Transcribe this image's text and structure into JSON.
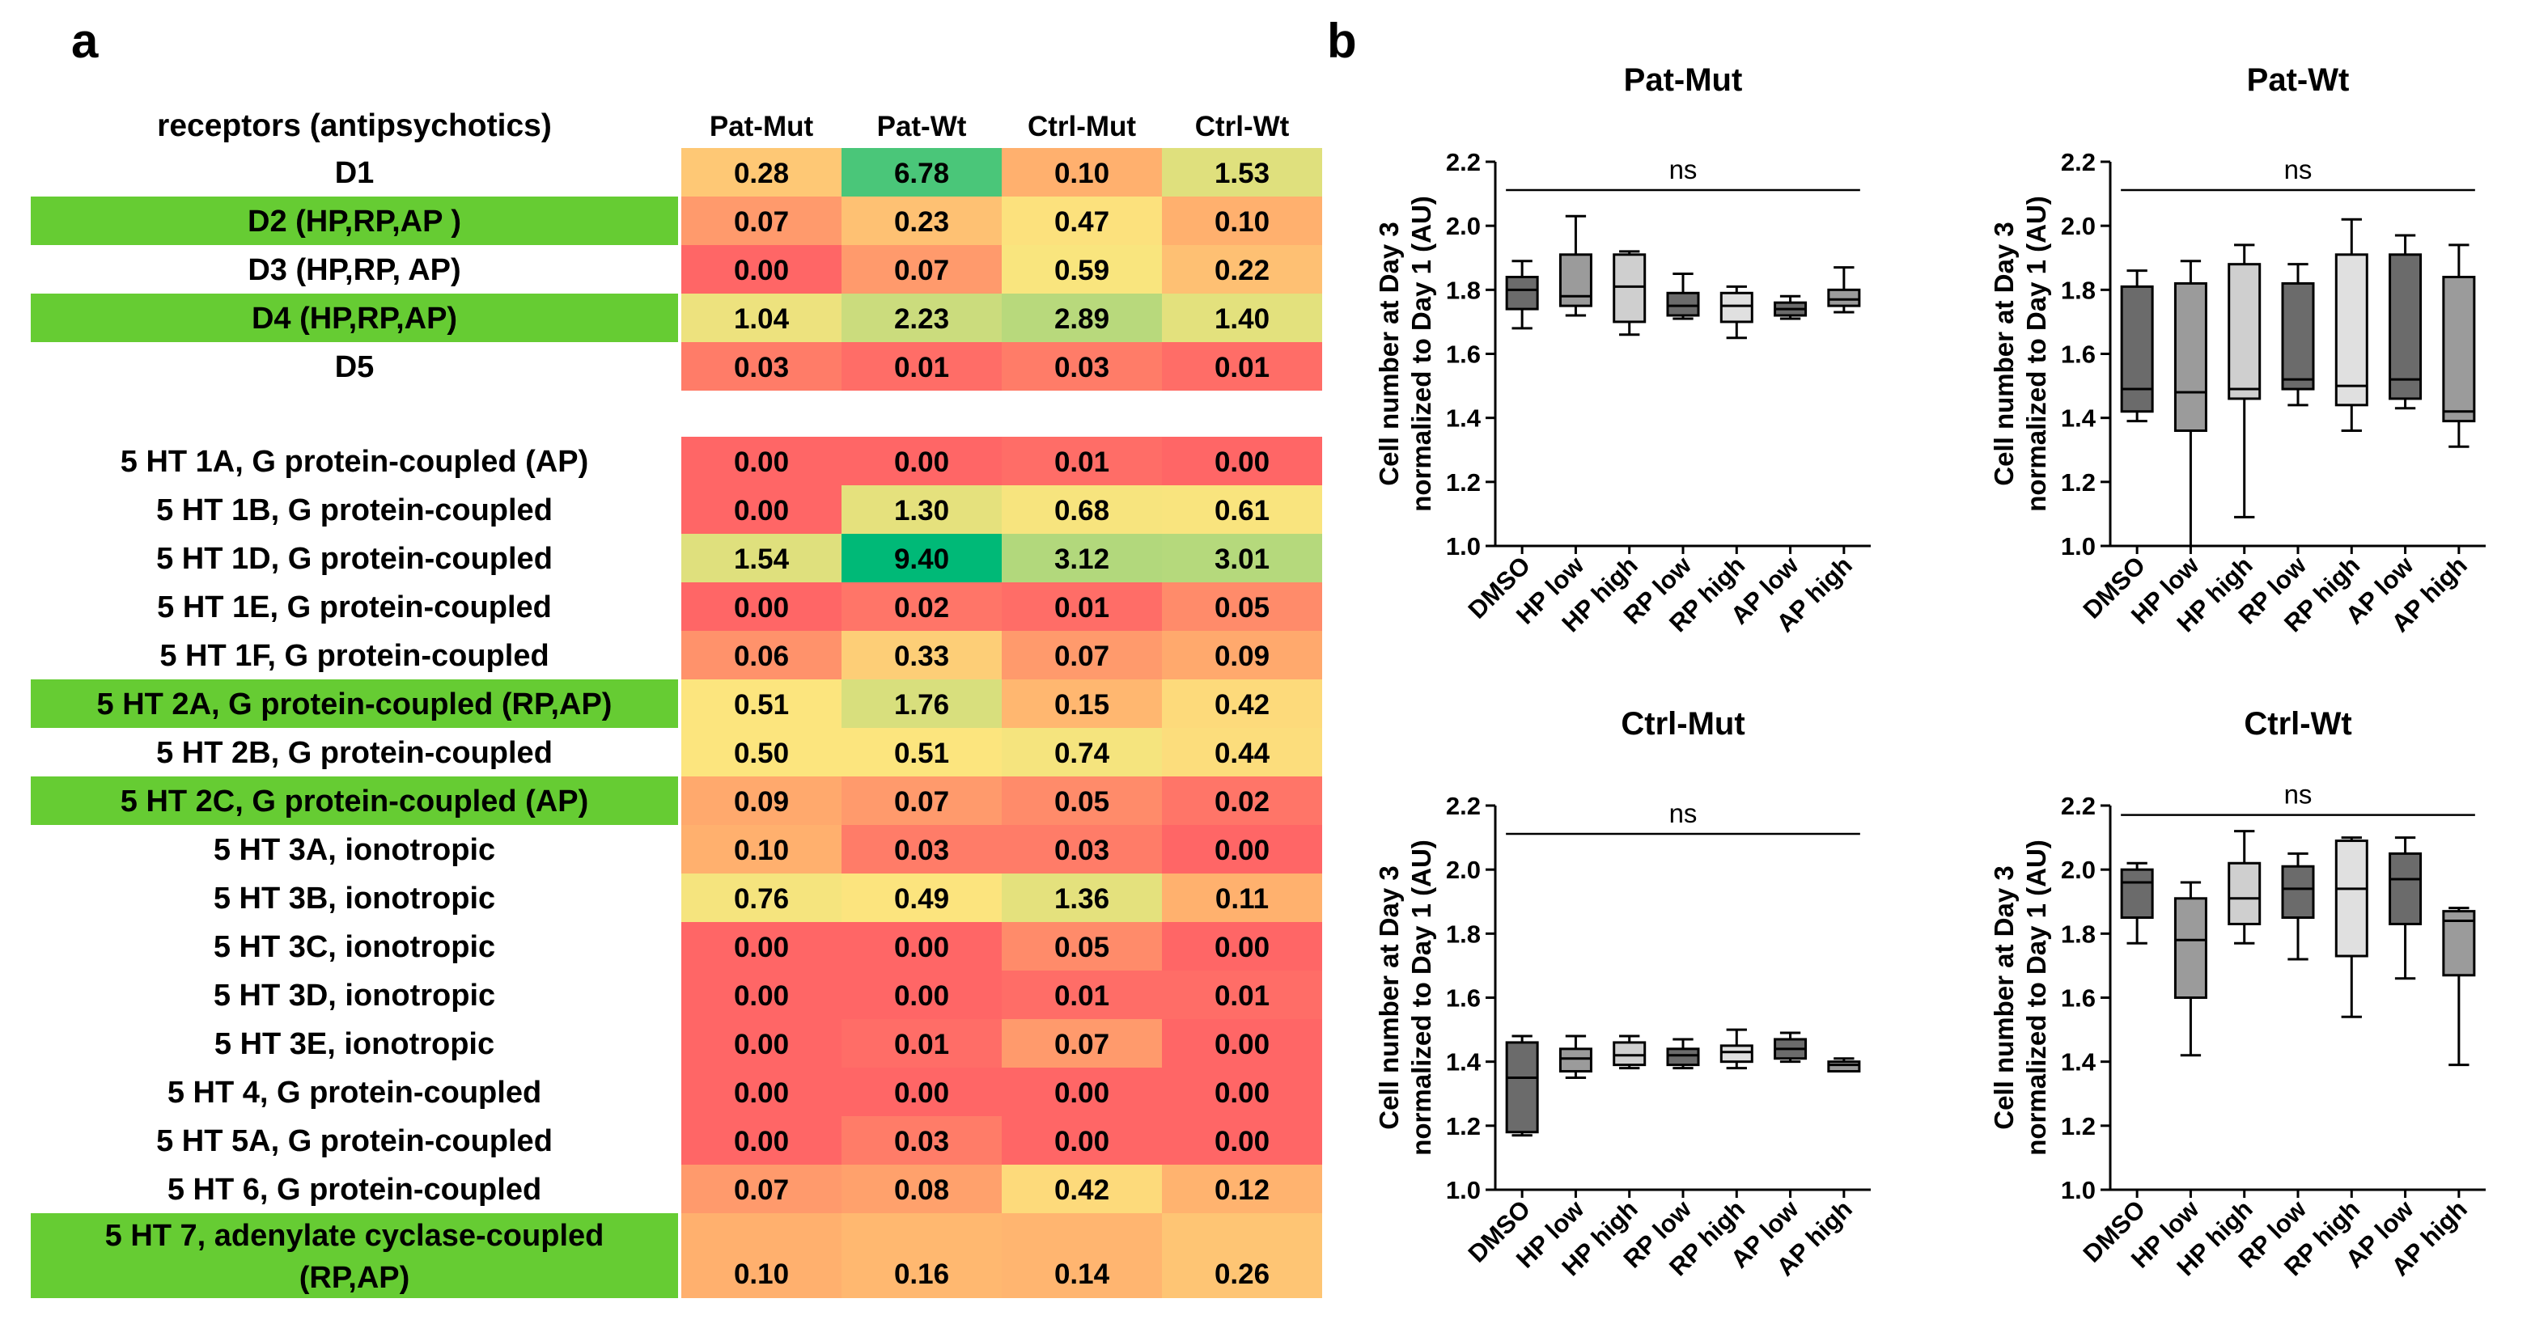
{
  "panel_labels": {
    "a": "a",
    "b": "b"
  },
  "chart_data": [
    {
      "type": "heatmap",
      "title": "",
      "row_header": "receptors (antipsychotics)",
      "columns": [
        "Pat-Mut",
        "Pat-Wt",
        "Ctrl-Mut",
        "Ctrl-Wt"
      ],
      "highlight_color": "#66cc33",
      "color_scale": {
        "low": "#ff6666",
        "mid": "#fce57e",
        "high": "#00b977"
      },
      "rows": [
        {
          "label": "D1",
          "values": [
            0.28,
            6.78,
            0.1,
            1.53
          ],
          "labels": [
            "0.28",
            "6.78",
            "0.10",
            "1.53"
          ],
          "highlight": false
        },
        {
          "label": "D2 (HP,RP,AP )",
          "values": [
            0.07,
            0.23,
            0.47,
            0.1
          ],
          "labels": [
            "0.07",
            "0.23",
            "0.47",
            "0.10"
          ],
          "highlight": true
        },
        {
          "label": "D3 (HP,RP, AP)",
          "values": [
            0.0,
            0.07,
            0.59,
            0.22
          ],
          "labels": [
            "0.00",
            "0.07",
            "0.59",
            "0.22"
          ],
          "highlight": false
        },
        {
          "label": "D4 (HP,RP,AP)",
          "values": [
            1.04,
            2.23,
            2.89,
            1.4
          ],
          "labels": [
            "1.04",
            "2.23",
            "2.89",
            "1.40"
          ],
          "highlight": true
        },
        {
          "label": "D5",
          "values": [
            0.03,
            0.01,
            0.03,
            0.01
          ],
          "labels": [
            "0.03",
            "0.01",
            "0.03",
            "0.01"
          ],
          "highlight": false
        },
        {
          "label": "5 HT 1A, G protein-coupled (AP)",
          "values": [
            0.0,
            0.0,
            0.01,
            0.0
          ],
          "labels": [
            "0.00",
            "0.00",
            "0.01",
            "0.00"
          ],
          "highlight": false
        },
        {
          "label": "5 HT 1B, G protein-coupled",
          "values": [
            0.0,
            1.3,
            0.68,
            0.61
          ],
          "labels": [
            "0.00",
            "1.30",
            "0.68",
            "0.61"
          ],
          "highlight": false
        },
        {
          "label": "5 HT 1D, G protein-coupled",
          "values": [
            1.54,
            9.4,
            3.12,
            3.01
          ],
          "labels": [
            "1.54",
            "9.40",
            "3.12",
            "3.01"
          ],
          "highlight": false
        },
        {
          "label": "5 HT 1E, G protein-coupled",
          "values": [
            0.0,
            0.02,
            0.01,
            0.05
          ],
          "labels": [
            "0.00",
            "0.02",
            "0.01",
            "0.05"
          ],
          "highlight": false
        },
        {
          "label": "5 HT 1F, G protein-coupled",
          "values": [
            0.06,
            0.33,
            0.07,
            0.09
          ],
          "labels": [
            "0.06",
            "0.33",
            "0.07",
            "0.09"
          ],
          "highlight": false
        },
        {
          "label": "5 HT 2A, G protein-coupled (RP,AP)",
          "values": [
            0.51,
            1.76,
            0.15,
            0.42
          ],
          "labels": [
            "0.51",
            "1.76",
            "0.15",
            "0.42"
          ],
          "highlight": true
        },
        {
          "label": "5 HT 2B, G protein-coupled",
          "values": [
            0.5,
            0.51,
            0.74,
            0.44
          ],
          "labels": [
            "0.50",
            "0.51",
            "0.74",
            "0.44"
          ],
          "highlight": false
        },
        {
          "label": "5 HT 2C, G protein-coupled (AP)",
          "values": [
            0.09,
            0.07,
            0.05,
            0.02
          ],
          "labels": [
            "0.09",
            "0.07",
            "0.05",
            "0.02"
          ],
          "highlight": true
        },
        {
          "label": "5 HT 3A, ionotropic",
          "values": [
            0.1,
            0.03,
            0.03,
            0.0
          ],
          "labels": [
            "0.10",
            "0.03",
            "0.03",
            "0.00"
          ],
          "highlight": false
        },
        {
          "label": "5 HT 3B, ionotropic",
          "values": [
            0.76,
            0.49,
            1.36,
            0.11
          ],
          "labels": [
            "0.76",
            "0.49",
            "1.36",
            "0.11"
          ],
          "highlight": false
        },
        {
          "label": "5 HT 3C, ionotropic",
          "values": [
            0.0,
            0.0,
            0.05,
            0.0
          ],
          "labels": [
            "0.00",
            "0.00",
            "0.05",
            "0.00"
          ],
          "highlight": false
        },
        {
          "label": "5 HT 3D, ionotropic",
          "values": [
            0.0,
            0.0,
            0.01,
            0.01
          ],
          "labels": [
            "0.00",
            "0.00",
            "0.01",
            "0.01"
          ],
          "highlight": false
        },
        {
          "label": "5 HT 3E, ionotropic",
          "values": [
            0.0,
            0.01,
            0.07,
            0.0
          ],
          "labels": [
            "0.00",
            "0.01",
            "0.07",
            "0.00"
          ],
          "highlight": false
        },
        {
          "label": "5 HT 4, G protein-coupled",
          "values": [
            0.0,
            0.0,
            0.0,
            0.0
          ],
          "labels": [
            "0.00",
            "0.00",
            "0.00",
            "0.00"
          ],
          "highlight": false
        },
        {
          "label": "5 HT 5A, G protein-coupled",
          "values": [
            0.0,
            0.03,
            0.0,
            0.0
          ],
          "labels": [
            "0.00",
            "0.03",
            "0.00",
            "0.00"
          ],
          "highlight": false
        },
        {
          "label": "5 HT 6, G protein-coupled",
          "values": [
            0.07,
            0.08,
            0.42,
            0.12
          ],
          "labels": [
            "0.07",
            "0.08",
            "0.42",
            "0.12"
          ],
          "highlight": false
        },
        {
          "label": "5 HT 7, adenylate cyclase-coupled\n(RP,AP)",
          "values": [
            0.1,
            0.16,
            0.14,
            0.26
          ],
          "labels": [
            "0.10",
            "0.16",
            "0.14",
            "0.26"
          ],
          "highlight": true
        }
      ]
    },
    {
      "type": "box",
      "title": "Pat-Mut",
      "ylabel": "Cell number at Day 3\nnormalized to Day 1 (AU)",
      "ylim": [
        1.0,
        2.2
      ],
      "yticks": [
        "1.0",
        "1.2",
        "1.4",
        "1.6",
        "1.8",
        "2.0",
        "2.2"
      ],
      "annotation": "ns",
      "categories": [
        "DMSO",
        "HP low",
        "HP high",
        "RP low",
        "RP high",
        "AP low",
        "AP high"
      ],
      "box_fills": [
        "#6b6b6b",
        "#9b9b9b",
        "#cfcfcf",
        "#6b6b6b",
        "#e0e0e0",
        "#6b6b6b",
        "#9b9b9b"
      ],
      "boxes": [
        {
          "min": 1.68,
          "q1": 1.74,
          "median": 1.8,
          "q3": 1.84,
          "max": 1.89
        },
        {
          "min": 1.72,
          "q1": 1.75,
          "median": 1.78,
          "q3": 1.91,
          "max": 2.03
        },
        {
          "min": 1.66,
          "q1": 1.7,
          "median": 1.81,
          "q3": 1.91,
          "max": 1.92
        },
        {
          "min": 1.71,
          "q1": 1.72,
          "median": 1.75,
          "q3": 1.79,
          "max": 1.85
        },
        {
          "min": 1.65,
          "q1": 1.7,
          "median": 1.75,
          "q3": 1.79,
          "max": 1.81
        },
        {
          "min": 1.71,
          "q1": 1.72,
          "median": 1.74,
          "q3": 1.76,
          "max": 1.78
        },
        {
          "min": 1.73,
          "q1": 1.75,
          "median": 1.77,
          "q3": 1.8,
          "max": 1.87
        }
      ]
    },
    {
      "type": "box",
      "title": "Pat-Wt",
      "ylabel": "Cell number at Day 3\nnormalized to Day 1 (AU)",
      "ylim": [
        1.0,
        2.2
      ],
      "yticks": [
        "1.0",
        "1.2",
        "1.4",
        "1.6",
        "1.8",
        "2.0",
        "2.2"
      ],
      "annotation": "ns",
      "categories": [
        "DMSO",
        "HP low",
        "HP high",
        "RP low",
        "RP high",
        "AP low",
        "AP high"
      ],
      "box_fills": [
        "#6b6b6b",
        "#9b9b9b",
        "#cfcfcf",
        "#6b6b6b",
        "#e0e0e0",
        "#6b6b6b",
        "#9b9b9b"
      ],
      "boxes": [
        {
          "min": 1.39,
          "q1": 1.42,
          "median": 1.49,
          "q3": 1.81,
          "max": 1.86
        },
        {
          "min": 1.0,
          "q1": 1.36,
          "median": 1.48,
          "q3": 1.82,
          "max": 1.89
        },
        {
          "min": 1.09,
          "q1": 1.46,
          "median": 1.49,
          "q3": 1.88,
          "max": 1.94
        },
        {
          "min": 1.44,
          "q1": 1.49,
          "median": 1.52,
          "q3": 1.82,
          "max": 1.88
        },
        {
          "min": 1.36,
          "q1": 1.44,
          "median": 1.5,
          "q3": 1.91,
          "max": 2.02
        },
        {
          "min": 1.43,
          "q1": 1.46,
          "median": 1.52,
          "q3": 1.91,
          "max": 1.97
        },
        {
          "min": 1.31,
          "q1": 1.39,
          "median": 1.42,
          "q3": 1.84,
          "max": 1.94
        }
      ]
    },
    {
      "type": "box",
      "title": "Ctrl-Mut",
      "ylabel": "Cell number at Day 3\nnormalized to Day 1 (AU)",
      "ylim": [
        1.0,
        2.2
      ],
      "yticks": [
        "1.0",
        "1.2",
        "1.4",
        "1.6",
        "1.8",
        "2.0",
        "2.2"
      ],
      "annotation": "ns",
      "categories": [
        "DMSO",
        "HP low",
        "HP high",
        "RP low",
        "RP high",
        "AP low",
        "AP high"
      ],
      "box_fills": [
        "#6b6b6b",
        "#9b9b9b",
        "#cfcfcf",
        "#6b6b6b",
        "#e0e0e0",
        "#6b6b6b",
        "#9b9b9b"
      ],
      "boxes": [
        {
          "min": 1.17,
          "q1": 1.18,
          "median": 1.35,
          "q3": 1.46,
          "max": 1.48
        },
        {
          "min": 1.35,
          "q1": 1.37,
          "median": 1.41,
          "q3": 1.44,
          "max": 1.48
        },
        {
          "min": 1.38,
          "q1": 1.39,
          "median": 1.42,
          "q3": 1.46,
          "max": 1.48
        },
        {
          "min": 1.38,
          "q1": 1.39,
          "median": 1.42,
          "q3": 1.44,
          "max": 1.47
        },
        {
          "min": 1.38,
          "q1": 1.4,
          "median": 1.43,
          "q3": 1.45,
          "max": 1.5
        },
        {
          "min": 1.4,
          "q1": 1.41,
          "median": 1.44,
          "q3": 1.47,
          "max": 1.49
        },
        {
          "min": 1.37,
          "q1": 1.37,
          "median": 1.39,
          "q3": 1.4,
          "max": 1.41
        }
      ]
    },
    {
      "type": "box",
      "title": "Ctrl-Wt",
      "ylabel": "Cell number at Day 3\nnormalized to Day 1 (AU)",
      "ylim": [
        1.0,
        2.2
      ],
      "yticks": [
        "1.0",
        "1.2",
        "1.4",
        "1.6",
        "1.8",
        "2.0",
        "2.2"
      ],
      "annotation": "ns",
      "categories": [
        "DMSO",
        "HP low",
        "HP high",
        "RP low",
        "RP high",
        "AP low",
        "AP high"
      ],
      "box_fills": [
        "#6b6b6b",
        "#9b9b9b",
        "#cfcfcf",
        "#6b6b6b",
        "#e0e0e0",
        "#6b6b6b",
        "#9b9b9b"
      ],
      "boxes": [
        {
          "min": 1.77,
          "q1": 1.85,
          "median": 1.96,
          "q3": 2.0,
          "max": 2.02
        },
        {
          "min": 1.42,
          "q1": 1.6,
          "median": 1.78,
          "q3": 1.91,
          "max": 1.96
        },
        {
          "min": 1.77,
          "q1": 1.83,
          "median": 1.91,
          "q3": 2.02,
          "max": 2.12
        },
        {
          "min": 1.72,
          "q1": 1.85,
          "median": 1.94,
          "q3": 2.01,
          "max": 2.05
        },
        {
          "min": 1.54,
          "q1": 1.73,
          "median": 1.94,
          "q3": 2.09,
          "max": 2.1
        },
        {
          "min": 1.66,
          "q1": 1.83,
          "median": 1.97,
          "q3": 2.05,
          "max": 2.1
        },
        {
          "min": 1.39,
          "q1": 1.67,
          "median": 1.84,
          "q3": 1.87,
          "max": 1.88
        }
      ]
    }
  ]
}
